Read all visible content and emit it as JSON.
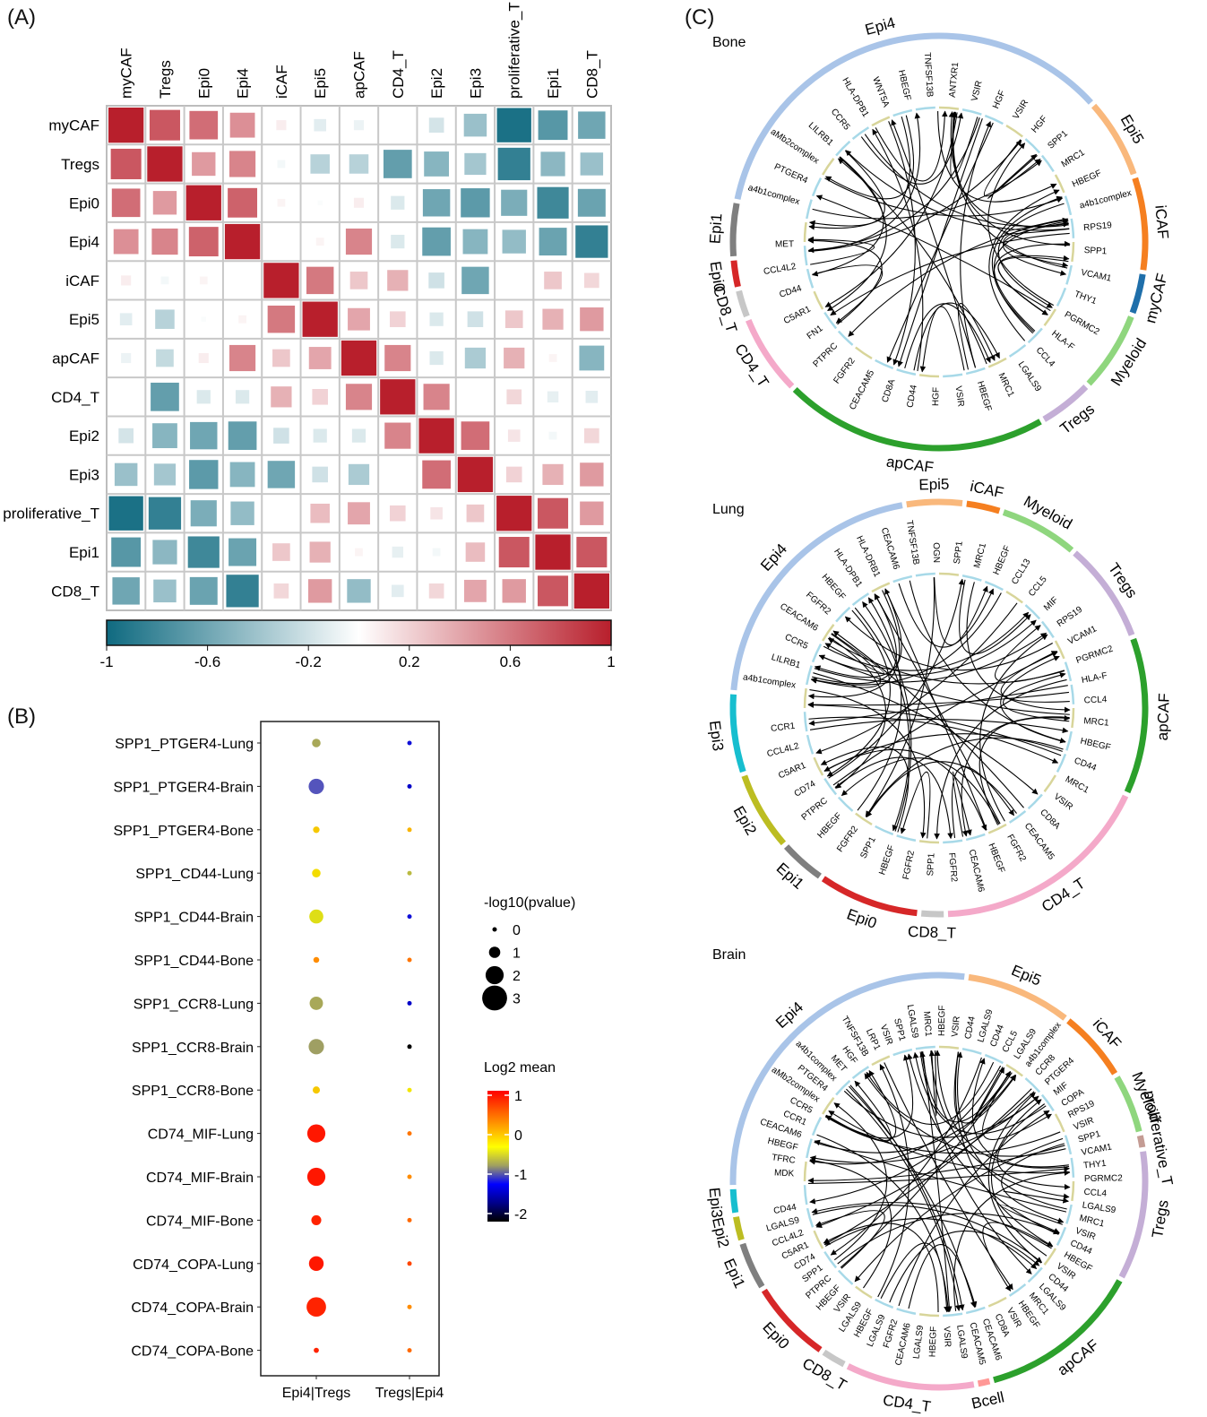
{
  "panels": {
    "a": "(A)",
    "b": "(B)",
    "c": "(C)"
  },
  "chart_data": [
    {
      "type": "heatmap",
      "title": "",
      "labels": [
        "myCAF",
        "Tregs",
        "Epi0",
        "Epi4",
        "iCAF",
        "Epi5",
        "apCAF",
        "CD4_T",
        "Epi2",
        "Epi3",
        "proliferative_T",
        "Epi1",
        "CD8_T"
      ],
      "matrix": [
        [
          1.0,
          0.75,
          0.65,
          0.5,
          0.08,
          -0.12,
          -0.08,
          0.0,
          -0.18,
          -0.42,
          -0.95,
          -0.7,
          -0.6
        ],
        [
          0.75,
          1.0,
          0.45,
          0.55,
          -0.05,
          -0.3,
          -0.3,
          -0.65,
          -0.5,
          -0.38,
          -0.85,
          -0.48,
          -0.42
        ],
        [
          0.65,
          0.45,
          1.0,
          0.7,
          0.05,
          -0.02,
          0.08,
          -0.15,
          -0.6,
          -0.68,
          -0.55,
          -0.8,
          -0.62
        ],
        [
          0.5,
          0.55,
          0.7,
          1.0,
          0.0,
          0.05,
          0.55,
          -0.15,
          -0.65,
          -0.5,
          -0.45,
          -0.62,
          -0.85
        ],
        [
          0.08,
          -0.05,
          0.05,
          0.0,
          1.0,
          0.6,
          0.25,
          0.35,
          -0.2,
          -0.6,
          0.0,
          0.25,
          0.18
        ],
        [
          -0.12,
          -0.3,
          -0.02,
          0.05,
          0.6,
          1.0,
          0.4,
          0.2,
          -0.15,
          -0.2,
          0.25,
          0.35,
          0.45
        ],
        [
          -0.08,
          -0.25,
          0.08,
          0.55,
          0.25,
          0.4,
          1.0,
          0.55,
          -0.15,
          -0.35,
          0.35,
          0.05,
          -0.5
        ],
        [
          0.0,
          -0.65,
          -0.15,
          -0.15,
          0.35,
          0.2,
          0.55,
          1.0,
          0.55,
          0.0,
          0.18,
          -0.1,
          -0.12
        ],
        [
          -0.18,
          -0.5,
          -0.6,
          -0.65,
          -0.2,
          -0.15,
          -0.15,
          0.55,
          1.0,
          0.65,
          0.12,
          -0.05,
          0.18
        ],
        [
          -0.42,
          -0.38,
          -0.68,
          -0.5,
          -0.6,
          -0.2,
          -0.35,
          0.0,
          0.65,
          1.0,
          0.2,
          0.35,
          0.45
        ],
        [
          -0.95,
          -0.85,
          -0.55,
          -0.45,
          0.0,
          0.3,
          0.4,
          0.2,
          0.12,
          0.25,
          1.0,
          0.75,
          0.45
        ],
        [
          -0.7,
          -0.48,
          -0.8,
          -0.62,
          0.25,
          0.35,
          0.05,
          -0.1,
          -0.05,
          0.3,
          0.75,
          1.0,
          0.75
        ],
        [
          -0.6,
          -0.42,
          -0.62,
          -0.85,
          0.18,
          0.45,
          -0.45,
          -0.12,
          0.18,
          0.4,
          0.45,
          0.75,
          1.0
        ]
      ],
      "colorbar": {
        "ticks": [
          "-1",
          "-0.6",
          "-0.2",
          "0.2",
          "0.6",
          "1"
        ],
        "range": [
          -1,
          1
        ],
        "low_color": "#0f6a80",
        "mid_color": "#ffffff",
        "high_color": "#b81f2c"
      }
    },
    {
      "type": "scatter",
      "subtype": "dotplot",
      "x_categories": [
        "Epi4|Tregs",
        "Tregs|Epi4"
      ],
      "y_categories": [
        "SPP1_PTGER4-Lung",
        "SPP1_PTGER4-Brain",
        "SPP1_PTGER4-Bone",
        "SPP1_CD44-Lung",
        "SPP1_CD44-Brain",
        "SPP1_CD44-Bone",
        "SPP1_CCR8-Lung",
        "SPP1_CCR8-Brain",
        "SPP1_CCR8-Bone",
        "CD74_MIF-Lung",
        "CD74_MIF-Brain",
        "CD74_MIF-Bone",
        "CD74_COPA-Lung",
        "CD74_COPA-Brain",
        "CD74_COPA-Bone"
      ],
      "points": [
        {
          "y": "SPP1_PTGER4-Lung",
          "x": "Epi4|Tregs",
          "log2mean": -0.4,
          "neglog10p": 0.6
        },
        {
          "y": "SPP1_PTGER4-Brain",
          "x": "Epi4|Tregs",
          "log2mean": -0.8,
          "neglog10p": 1.6
        },
        {
          "y": "SPP1_PTGER4-Bone",
          "x": "Epi4|Tregs",
          "log2mean": 0.2,
          "neglog10p": 0.3
        },
        {
          "y": "SPP1_CD44-Lung",
          "x": "Epi4|Tregs",
          "log2mean": 0.1,
          "neglog10p": 0.6
        },
        {
          "y": "SPP1_CD44-Brain",
          "x": "Epi4|Tregs",
          "log2mean": -0.1,
          "neglog10p": 1.4
        },
        {
          "y": "SPP1_CD44-Bone",
          "x": "Epi4|Tregs",
          "log2mean": 0.5,
          "neglog10p": 0.2
        },
        {
          "y": "SPP1_CCR8-Lung",
          "x": "Epi4|Tregs",
          "log2mean": -0.4,
          "neglog10p": 1.3
        },
        {
          "y": "SPP1_CCR8-Brain",
          "x": "Epi4|Tregs",
          "log2mean": -0.45,
          "neglog10p": 1.6
        },
        {
          "y": "SPP1_CCR8-Bone",
          "x": "Epi4|Tregs",
          "log2mean": 0.2,
          "neglog10p": 0.4
        },
        {
          "y": "CD74_MIF-Lung",
          "x": "Epi4|Tregs",
          "log2mean": 1.0,
          "neglog10p": 2.0
        },
        {
          "y": "CD74_MIF-Brain",
          "x": "Epi4|Tregs",
          "log2mean": 1.0,
          "neglog10p": 2.0
        },
        {
          "y": "CD74_MIF-Bone",
          "x": "Epi4|Tregs",
          "log2mean": 0.95,
          "neglog10p": 0.8
        },
        {
          "y": "CD74_COPA-Lung",
          "x": "Epi4|Tregs",
          "log2mean": 1.0,
          "neglog10p": 1.5
        },
        {
          "y": "CD74_COPA-Brain",
          "x": "Epi4|Tregs",
          "log2mean": 0.95,
          "neglog10p": 2.2
        },
        {
          "y": "CD74_COPA-Bone",
          "x": "Epi4|Tregs",
          "log2mean": 0.95,
          "neglog10p": 0.1
        },
        {
          "y": "SPP1_PTGER4-Lung",
          "x": "Tregs|Epi4",
          "log2mean": -1.3,
          "neglog10p": 0.0
        },
        {
          "y": "SPP1_PTGER4-Brain",
          "x": "Tregs|Epi4",
          "log2mean": -1.5,
          "neglog10p": 0.0
        },
        {
          "y": "SPP1_PTGER4-Bone",
          "x": "Tregs|Epi4",
          "log2mean": 0.3,
          "neglog10p": 0.0
        },
        {
          "y": "SPP1_CD44-Lung",
          "x": "Tregs|Epi4",
          "log2mean": -0.3,
          "neglog10p": 0.0
        },
        {
          "y": "SPP1_CD44-Brain",
          "x": "Tregs|Epi4",
          "log2mean": -1.3,
          "neglog10p": 0.0
        },
        {
          "y": "SPP1_CD44-Bone",
          "x": "Tregs|Epi4",
          "log2mean": 0.6,
          "neglog10p": 0.0
        },
        {
          "y": "SPP1_CCR8-Lung",
          "x": "Tregs|Epi4",
          "log2mean": -1.5,
          "neglog10p": 0.0
        },
        {
          "y": "SPP1_CCR8-Brain",
          "x": "Tregs|Epi4",
          "log2mean": -2.2,
          "neglog10p": 0.0
        },
        {
          "y": "SPP1_CCR8-Bone",
          "x": "Tregs|Epi4",
          "log2mean": 0.05,
          "neglog10p": 0.0
        },
        {
          "y": "CD74_MIF-Lung",
          "x": "Tregs|Epi4",
          "log2mean": 0.6,
          "neglog10p": 0.0
        },
        {
          "y": "CD74_MIF-Brain",
          "x": "Tregs|Epi4",
          "log2mean": 0.5,
          "neglog10p": 0.0
        },
        {
          "y": "CD74_MIF-Bone",
          "x": "Tregs|Epi4",
          "log2mean": 0.65,
          "neglog10p": 0.0
        },
        {
          "y": "CD74_COPA-Lung",
          "x": "Tregs|Epi4",
          "log2mean": 0.8,
          "neglog10p": 0.0
        },
        {
          "y": "CD74_COPA-Brain",
          "x": "Tregs|Epi4",
          "log2mean": 0.5,
          "neglog10p": 0.0
        },
        {
          "y": "CD74_COPA-Bone",
          "x": "Tregs|Epi4",
          "log2mean": 0.65,
          "neglog10p": 0.0
        }
      ],
      "size_legend": {
        "title": "-log10(pvalue)",
        "values": [
          "0",
          "1",
          "2",
          "3"
        ]
      },
      "color_legend": {
        "title": "Log2 mean",
        "ticks": [
          "1",
          "0",
          "-1",
          "-2"
        ],
        "range": [
          -2.2,
          1.1
        ]
      }
    },
    {
      "type": "chord",
      "title": "Bone",
      "sectors": [
        {
          "name": "Epi4",
          "color": "#a9c4e8",
          "weight": 34
        },
        {
          "name": "Epi5",
          "color": "#f9b87c",
          "weight": 6
        },
        {
          "name": "iCAF",
          "color": "#f57f20",
          "weight": 7
        },
        {
          "name": "myCAF",
          "color": "#1f6faa",
          "weight": 3
        },
        {
          "name": "Myeloid",
          "color": "#8fd67e",
          "weight": 6
        },
        {
          "name": "Tregs",
          "color": "#c4aed6",
          "weight": 4
        },
        {
          "name": "apCAF",
          "color": "#2ca02c",
          "weight": 20
        },
        {
          "name": "CD4_T",
          "color": "#f4a9c9",
          "weight": 6
        },
        {
          "name": "CD8_T",
          "color": "#c7c7c7",
          "weight": 2
        },
        {
          "name": "Epi0",
          "color": "#d62728",
          "weight": 2
        },
        {
          "name": "Epi1",
          "color": "#7f7f7f",
          "weight": 4
        }
      ],
      "genes": [
        "a4b1complex",
        "PTGER4",
        "aMb2complex",
        "LILRB1",
        "CCR5",
        "HLA-DPB1",
        "WNT5A",
        "HBEGF",
        "TNFSF13B",
        "ANTXR1",
        "VSIR",
        "HGF",
        "VSIR",
        "HGF",
        "SPP1",
        "MRC1",
        "HBEGF",
        "a4b1complex",
        "RPS19",
        "SPP1",
        "VCAM1",
        "THY1",
        "PGRMC2",
        "HLA-F",
        "CCL4",
        "LGALS9",
        "MRC1",
        "HBEGF",
        "VSIR",
        "HGF",
        "CD44",
        "CD8A",
        "CEACAM5",
        "FGFR2",
        "PTPRC",
        "FN1",
        "C5AR1",
        "CD44",
        "CCL4L2",
        "MET"
      ]
    },
    {
      "type": "chord",
      "title": "Lung",
      "sectors": [
        {
          "name": "Epi4",
          "color": "#a9c4e8",
          "weight": 24
        },
        {
          "name": "Epi5",
          "color": "#f9b87c",
          "weight": 5
        },
        {
          "name": "iCAF",
          "color": "#f57f20",
          "weight": 3
        },
        {
          "name": "Myeloid",
          "color": "#8fd67e",
          "weight": 7
        },
        {
          "name": "Tregs",
          "color": "#c4aed6",
          "weight": 9
        },
        {
          "name": "apCAF",
          "color": "#2ca02c",
          "weight": 14
        },
        {
          "name": "CD4_T",
          "color": "#f4a9c9",
          "weight": 20
        },
        {
          "name": "CD8_T",
          "color": "#c7c7c7",
          "weight": 2
        },
        {
          "name": "Epi0",
          "color": "#d62728",
          "weight": 9
        },
        {
          "name": "Epi1",
          "color": "#7f7f7f",
          "weight": 4
        },
        {
          "name": "Epi2",
          "color": "#bcbd22",
          "weight": 7
        },
        {
          "name": "Epi3",
          "color": "#17becf",
          "weight": 7
        }
      ],
      "genes": [
        "a4b1complex",
        "LILRB1",
        "CCR5",
        "CEACAM6",
        "FGFR2",
        "HBEGF",
        "HLA-DPB1",
        "HLA-DRB1",
        "CEACAM6",
        "TNFSF13B",
        "OGN",
        "SPP1",
        "MRC1",
        "HBEGF",
        "CCL13",
        "CCL5",
        "MIF",
        "RPS19",
        "VCAM1",
        "PGRMC2",
        "HLA-F",
        "CCL4",
        "MRC1",
        "HBEGF",
        "CD44",
        "MRC1",
        "VSIR",
        "CD8A",
        "CEACAM5",
        "FGFR2",
        "HBEGF",
        "CEACAM6",
        "FGFR2",
        "SPP1",
        "FGFR2",
        "HBEGF",
        "SPP1",
        "FGFR2",
        "HBEGF",
        "PTPRC",
        "CD74",
        "C5AR1",
        "CCL4L2",
        "CCR1"
      ]
    },
    {
      "type": "chord",
      "title": "Brain",
      "sectors": [
        {
          "name": "Epi4",
          "color": "#a9c4e8",
          "weight": 30
        },
        {
          "name": "Epi5",
          "color": "#f9b87c",
          "weight": 9
        },
        {
          "name": "iCAF",
          "color": "#f57f20",
          "weight": 6
        },
        {
          "name": "Myeloid",
          "color": "#8fd67e",
          "weight": 5
        },
        {
          "name": "proliferative_T",
          "color": "#c49c94",
          "weight": 1
        },
        {
          "name": "Tregs",
          "color": "#c4aed6",
          "weight": 11
        },
        {
          "name": "apCAF",
          "color": "#2ca02c",
          "weight": 14
        },
        {
          "name": "Bcell",
          "color": "#ff9896",
          "weight": 1
        },
        {
          "name": "CD4_T",
          "color": "#f4a9c9",
          "weight": 11
        },
        {
          "name": "CD8_T",
          "color": "#c7c7c7",
          "weight": 2
        },
        {
          "name": "Epi0",
          "color": "#d62728",
          "weight": 7
        },
        {
          "name": "Epi1",
          "color": "#7f7f7f",
          "weight": 4
        },
        {
          "name": "Epi2",
          "color": "#bcbd22",
          "weight": 2
        },
        {
          "name": "Epi3",
          "color": "#17becf",
          "weight": 2
        }
      ],
      "genes": [
        "MDK",
        "TFRC",
        "HBEGF",
        "CEACAM6",
        "CCR1",
        "CCR5",
        "aMb2complex",
        "PTGER4",
        "a4b1complex",
        "MET",
        "HGF",
        "TNFSF13B",
        "LRP1",
        "VSIR",
        "SPP1",
        "LGALS9",
        "MRC1",
        "HBEGF",
        "VSIR",
        "CD44",
        "LGALS9",
        "CD44",
        "CCL5",
        "LGALS9",
        "a4b1complex",
        "CCR8",
        "PTGER4",
        "MIF",
        "COPA",
        "RPS19",
        "VSIR",
        "SPP1",
        "VCAM1",
        "THY1",
        "PGRMC2",
        "CCL4",
        "LGALS9",
        "MRC1",
        "VSIR",
        "CD44",
        "HBEGF",
        "VSIR",
        "CD44",
        "LGALS9",
        "MRC1",
        "HBEGF",
        "VSIR",
        "CD8A",
        "CEACAM6",
        "CEACAM5",
        "LGALS9",
        "VSIR",
        "HBEGF",
        "LGALS9",
        "CEACAM6",
        "FGFR2",
        "LGALS9",
        "HBEGF",
        "LGALS9",
        "VSIR",
        "HBEGF",
        "PTPRC",
        "SPP1",
        "CD74",
        "C5AR1",
        "CCL4L2",
        "LGALS9",
        "CD44"
      ]
    }
  ]
}
